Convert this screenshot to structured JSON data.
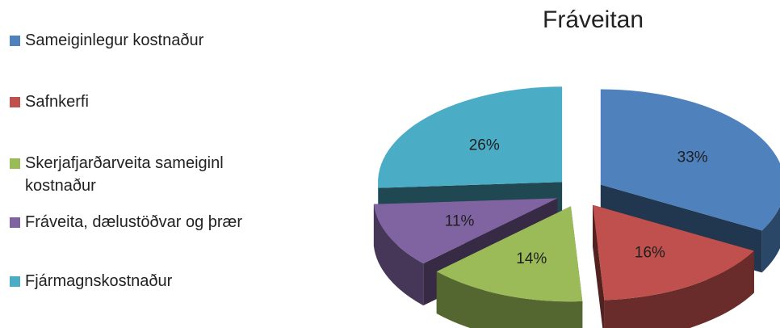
{
  "chart_data": {
    "type": "pie",
    "title": "Fráveitan",
    "legend_position": "left",
    "slices": [
      {
        "name": "Sameiginlegur kostnaður",
        "value": 33,
        "label": "33%",
        "color": "#4F81BD"
      },
      {
        "name": "Safnkerfi",
        "value": 16,
        "label": "16%",
        "color": "#C0504D"
      },
      {
        "name": "Skerjafjarðarveita sameiginl kostnaður",
        "value": 14,
        "label": "14%",
        "color": "#9BBB59"
      },
      {
        "name": "Fráveita, dælustöðvar og þrær",
        "value": 11,
        "label": "11%",
        "color": "#8064A2"
      },
      {
        "name": "Fjármagnskostnaður",
        "value": 26,
        "label": "26%",
        "color": "#4BACC6"
      }
    ]
  }
}
